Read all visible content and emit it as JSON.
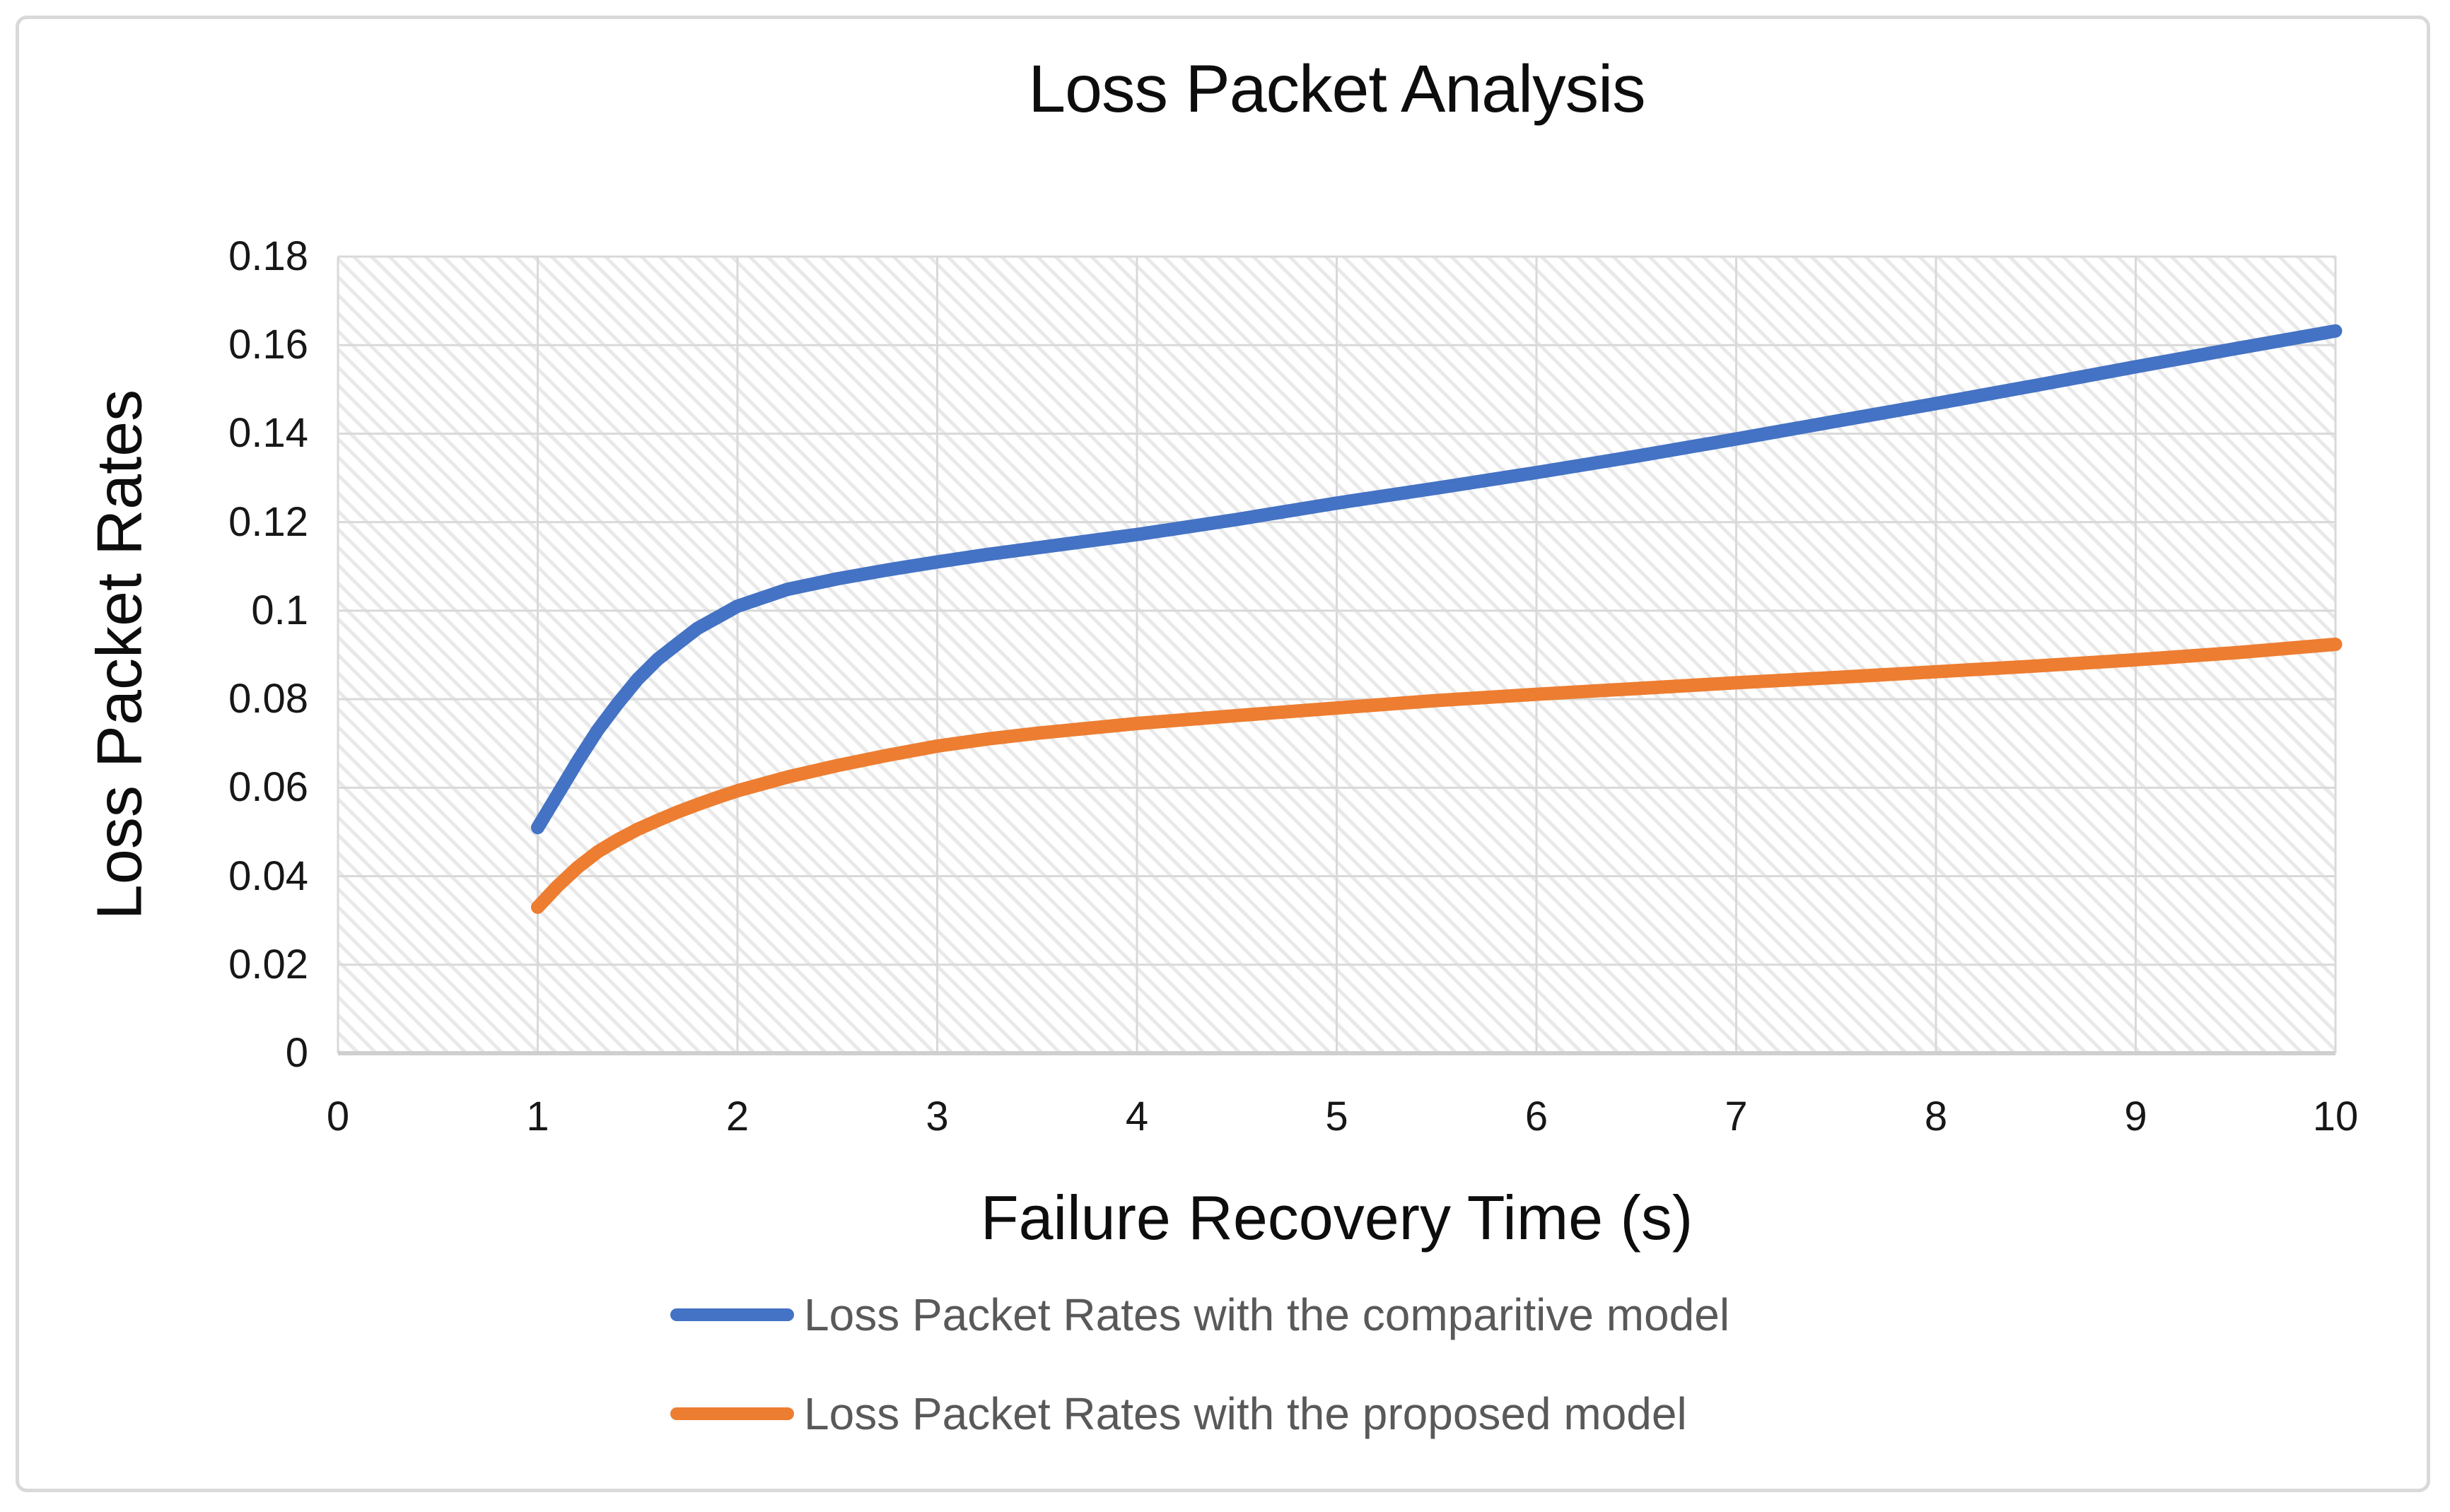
{
  "chart": {
    "title": "Loss Packet Analysis",
    "x_axis_title": "Failure Recovery Time (s)",
    "y_axis_title": "Loss Packet Rates"
  },
  "chart_data": {
    "type": "line",
    "title": "Loss Packet Analysis",
    "xlabel": "Failure Recovery Time (s)",
    "ylabel": "Loss Packet Rates",
    "xlim": [
      0,
      10
    ],
    "ylim": [
      0,
      0.18
    ],
    "x_tick_labels": [
      "0",
      "1",
      "2",
      "3",
      "4",
      "5",
      "6",
      "7",
      "8",
      "9",
      "10"
    ],
    "y_tick_labels": [
      "0",
      "0.02",
      "0.04",
      "0.06",
      "0.08",
      "0.1",
      "0.12",
      "0.14",
      "0.16",
      "0.18"
    ],
    "grid": true,
    "plot_background": "light-diagonal-hatch",
    "legend_position": "bottom",
    "x": [
      1.0,
      1.1,
      1.2,
      1.3,
      1.4,
      1.5,
      1.6,
      1.7,
      1.8,
      1.9,
      2.0,
      2.25,
      2.5,
      2.75,
      3.0,
      3.25,
      3.5,
      3.75,
      4.0,
      4.5,
      5.0,
      5.5,
      6.0,
      6.5,
      7.0,
      7.5,
      8.0,
      8.5,
      9.0,
      9.5,
      10.0
    ],
    "series": [
      {
        "name": "Loss Packet Rates with the comparitive model",
        "color": "#4472C4",
        "values": [
          0.051,
          0.0585,
          0.066,
          0.073,
          0.079,
          0.0845,
          0.089,
          0.0925,
          0.096,
          0.0985,
          0.101,
          0.1048,
          0.1072,
          0.1092,
          0.111,
          0.1127,
          0.1142,
          0.1157,
          0.1172,
          0.1206,
          0.1243,
          0.1277,
          0.1312,
          0.1349,
          0.1388,
          0.1428,
          0.1468,
          0.1509,
          0.1551,
          0.1592,
          0.1632
        ]
      },
      {
        "name": "Loss Packet Rates with the proposed model",
        "color": "#ED7D31",
        "values": [
          0.033,
          0.0378,
          0.042,
          0.0455,
          0.0482,
          0.0506,
          0.0526,
          0.0545,
          0.0562,
          0.0578,
          0.0593,
          0.0624,
          0.065,
          0.0673,
          0.0694,
          0.071,
          0.0723,
          0.0734,
          0.0745,
          0.0763,
          0.078,
          0.0797,
          0.0811,
          0.0824,
          0.0837,
          0.0849,
          0.0862,
          0.0875,
          0.0889,
          0.0905,
          0.0924
        ]
      }
    ]
  },
  "colors": {
    "gridline": "#d9d9d9",
    "axis_line": "#cfcfcf",
    "hatch": "#e6e6e6",
    "title_text": "#0d0d0d",
    "tick_text": "#171717",
    "legend_text": "#595959",
    "frame_border": "#d9d9d9"
  }
}
